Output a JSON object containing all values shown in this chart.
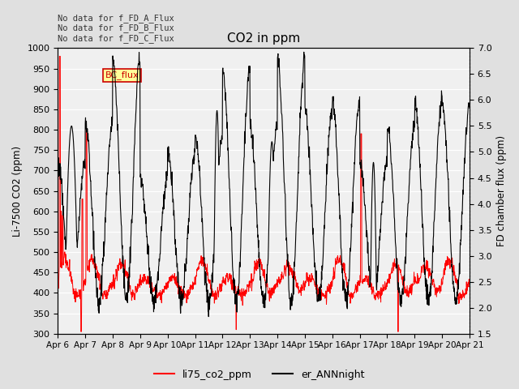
{
  "title": "CO2 in ppm",
  "ylabel_left": "Li-7500 CO2 (ppm)",
  "ylabel_right": "FD chamber flux (ppm)",
  "ylim_left": [
    300,
    1000
  ],
  "ylim_right": [
    1.5,
    7.0
  ],
  "fig_bg_color": "#e0e0e0",
  "plot_bg_color": "#f0f0f0",
  "annotations": [
    "No data for f_FD_A_Flux",
    "No data for f_FD_B_Flux",
    "No data for f_FD_C_Flux"
  ],
  "legend_box_label": "BC_flux",
  "legend_box_facecolor": "#ffff99",
  "legend_box_edgecolor": "#cc0000",
  "legend_entries": [
    "li75_co2_ppm",
    "er_ANNnight"
  ],
  "legend_colors": [
    "#ff0000",
    "#000000"
  ],
  "xtick_labels": [
    "Apr 6",
    "Apr 7",
    "Apr 8",
    "Apr 9",
    "Apr 10",
    "Apr 11",
    "Apr 12",
    "Apr 13",
    "Apr 14",
    "Apr 15",
    "Apr 16",
    "Apr 17",
    "Apr 18",
    "Apr 19",
    "Apr 20",
    "Apr 21"
  ],
  "n_days": 15,
  "n_points": 1500,
  "seed": 7
}
